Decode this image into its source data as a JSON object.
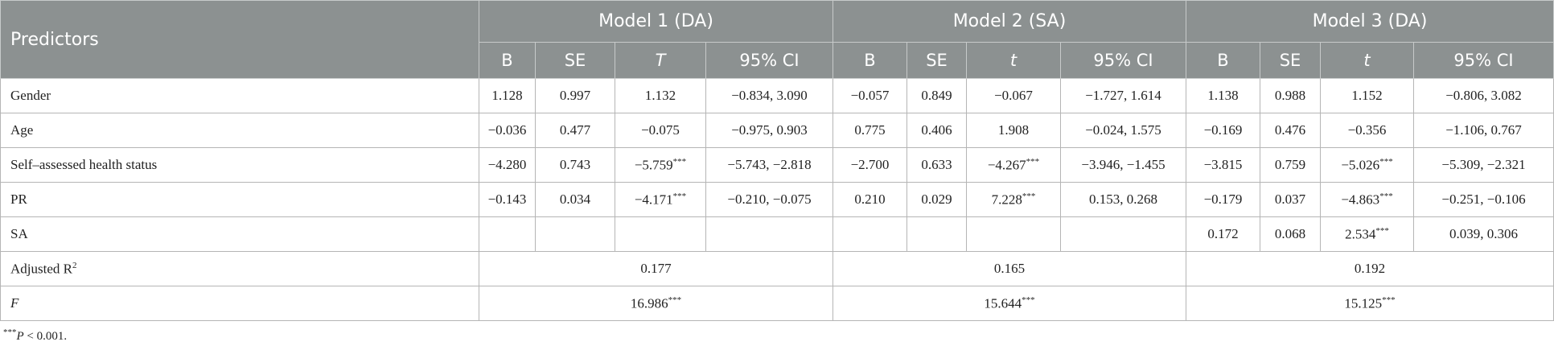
{
  "header": {
    "predictors": "Predictors",
    "models": [
      "Model 1 (DA)",
      "Model 2 (SA)",
      "Model 3 (DA)"
    ],
    "columns": [
      [
        "B",
        "SE",
        "T",
        "95% CI"
      ],
      [
        "B",
        "SE",
        "t",
        "95% CI"
      ],
      [
        "B",
        "SE",
        "t",
        "95% CI"
      ]
    ]
  },
  "rows": [
    {
      "label": "Gender",
      "cells": [
        "1.128",
        "0.997",
        "1.132",
        "−0.834, 3.090",
        "−0.057",
        "0.849",
        "−0.067",
        "−1.727, 1.614",
        "1.138",
        "0.988",
        "1.152",
        "−0.806, 3.082"
      ]
    },
    {
      "label": "Age",
      "cells": [
        "−0.036",
        "0.477",
        "−0.075",
        "−0.975, 0.903",
        "0.775",
        "0.406",
        "1.908",
        "−0.024, 1.575",
        "−0.169",
        "0.476",
        "−0.356",
        "−1.106, 0.767"
      ]
    },
    {
      "label": "Self–assessed health status",
      "cells": [
        "−4.280",
        "0.743",
        {
          "value": "−5.759",
          "sig": "***"
        },
        "−5.743, −2.818",
        "−2.700",
        "0.633",
        {
          "value": "−4.267",
          "sig": "***"
        },
        "−3.946, −1.455",
        "−3.815",
        "0.759",
        {
          "value": "−5.026",
          "sig": "***"
        },
        "−5.309, −2.321"
      ]
    },
    {
      "label": "PR",
      "cells": [
        "−0.143",
        "0.034",
        {
          "value": "−4.171",
          "sig": "***"
        },
        "−0.210, −0.075",
        "0.210",
        "0.029",
        {
          "value": "7.228",
          "sig": "***"
        },
        "0.153, 0.268",
        "−0.179",
        "0.037",
        {
          "value": "−4.863",
          "sig": "***"
        },
        "−0.251, −0.106"
      ]
    },
    {
      "label": "SA",
      "cells": [
        null,
        null,
        null,
        null,
        null,
        null,
        null,
        null,
        "0.172",
        "0.068",
        {
          "value": "2.534",
          "sig": "***"
        },
        "0.039, 0.306"
      ]
    }
  ],
  "fit_rows": [
    {
      "label": "Adjusted R",
      "label_sup": "2",
      "values": [
        "0.177",
        "0.165",
        "0.192"
      ]
    },
    {
      "label": "F",
      "italic": true,
      "values": [
        {
          "value": "16.986",
          "sig": "***"
        },
        {
          "value": "15.644",
          "sig": "***"
        },
        {
          "value": "15.125",
          "sig": "***"
        }
      ]
    }
  ],
  "footnote": {
    "sig": "***",
    "symbol": "P",
    "text": " < 0.001."
  }
}
